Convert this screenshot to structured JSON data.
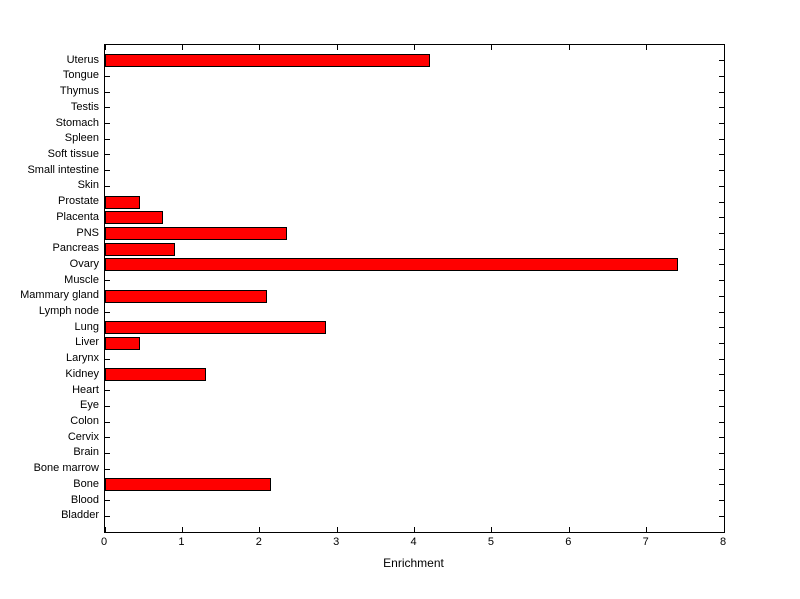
{
  "figure": {
    "background": "#ffffff",
    "text_color": "#000000"
  },
  "chart_data": {
    "type": "bar",
    "orientation": "horizontal",
    "title": "",
    "xlabel": "Enrichment",
    "ylabel": "",
    "xlim": [
      0,
      8
    ],
    "xticks": [
      0,
      1,
      2,
      3,
      4,
      5,
      6,
      7,
      8
    ],
    "grid": false,
    "legend": null,
    "bar_color": "#ff0000",
    "bar_edge_color": "#000000",
    "category_order": "top-to-bottom",
    "categories": [
      "Uterus",
      "Tongue",
      "Thymus",
      "Testis",
      "Stomach",
      "Spleen",
      "Soft tissue",
      "Small intestine",
      "Skin",
      "Prostate",
      "Placenta",
      "PNS",
      "Pancreas",
      "Ovary",
      "Muscle",
      "Mammary gland",
      "Lymph node",
      "Lung",
      "Liver",
      "Larynx",
      "Kidney",
      "Heart",
      "Eye",
      "Colon",
      "Cervix",
      "Brain",
      "Bone marrow",
      "Bone",
      "Blood",
      "Bladder"
    ],
    "values": [
      4.2,
      0,
      0,
      0,
      0,
      0,
      0,
      0,
      0,
      0.45,
      0.75,
      2.35,
      0.9,
      7.4,
      0,
      2.1,
      0,
      2.85,
      0.45,
      0,
      1.3,
      0,
      0,
      0,
      0,
      0,
      0,
      2.15,
      0,
      0
    ]
  }
}
